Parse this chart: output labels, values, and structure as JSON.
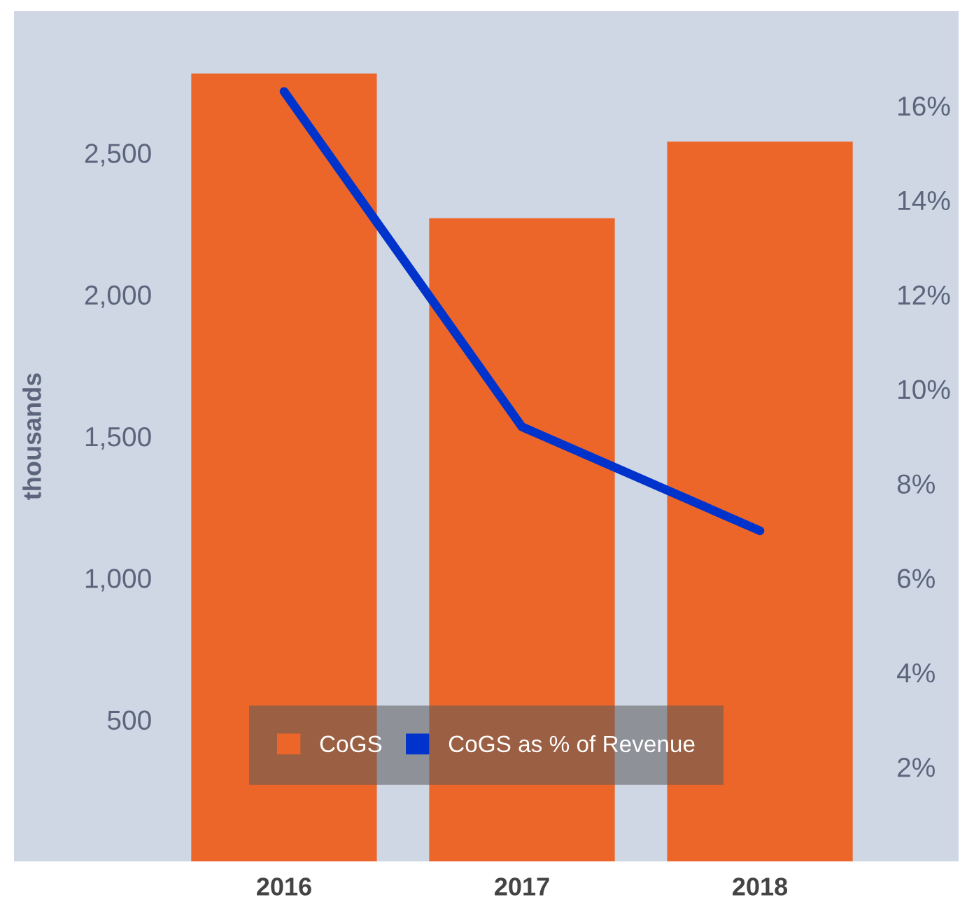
{
  "chart_data": {
    "type": "bar",
    "ylabel": "thousands",
    "categories": [
      "2016",
      "2017",
      "2018"
    ],
    "series": [
      {
        "name": "CoGS",
        "color": "#ec6629",
        "values": [
          2780,
          2270,
          2540
        ]
      },
      {
        "name": "CoGS as % of Revenue",
        "type": "line",
        "axis": "y2",
        "color": "#0033cc",
        "values": [
          16.3,
          9.2,
          7.0
        ]
      }
    ],
    "ylim": [
      0,
      3000
    ],
    "yticks": [
      {
        "value": 500,
        "label": "500"
      },
      {
        "value": 1000,
        "label": "1,000"
      },
      {
        "value": 1500,
        "label": "1,500"
      },
      {
        "value": 2000,
        "label": "2,000"
      },
      {
        "value": 2500,
        "label": "2,500"
      }
    ],
    "y2lim": [
      0,
      18
    ],
    "y2ticks": [
      {
        "value": 2,
        "label": "2%"
      },
      {
        "value": 4,
        "label": "4%"
      },
      {
        "value": 6,
        "label": "6%"
      },
      {
        "value": 8,
        "label": "8%"
      },
      {
        "value": 10,
        "label": "10%"
      },
      {
        "value": 12,
        "label": "12%"
      },
      {
        "value": 14,
        "label": "14%"
      },
      {
        "value": 16,
        "label": "16%"
      }
    ],
    "grid": false,
    "legend": "bottom",
    "marker": "none",
    "line_style": "solid"
  }
}
